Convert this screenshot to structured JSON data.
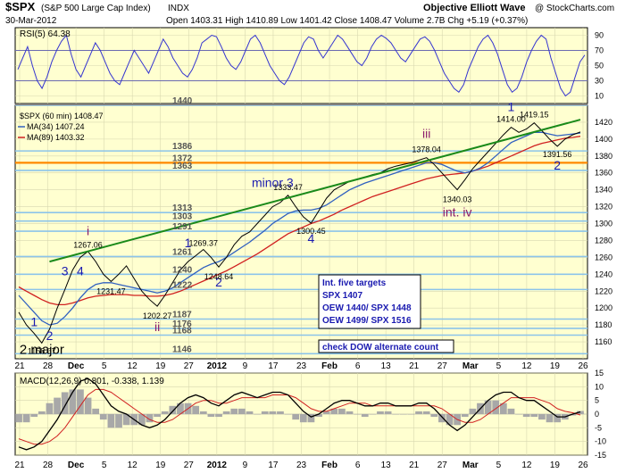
{
  "header": {
    "symbol": "$SPX",
    "name": "(S&P 500 Large Cap Index)",
    "exchange": "INDX",
    "date": "30-Mar-2012",
    "ohlc_line": "Open 1403.31   High 1410.89   Low 1401.42   Close 1408.47   Volume 2.7B   Chg +5.19 (+0.37%)",
    "source_left": "Objective Elliott Wave",
    "source_right": "@ StockCharts.com"
  },
  "rsi": {
    "label": "RSI(5) 64.38",
    "ticks": [
      "90",
      "70",
      "50",
      "30",
      "10"
    ],
    "values": [
      45,
      60,
      75,
      50,
      30,
      20,
      35,
      55,
      70,
      82,
      90,
      65,
      45,
      35,
      50,
      65,
      80,
      70,
      55,
      40,
      30,
      25,
      40,
      55,
      70,
      60,
      50,
      40,
      55,
      70,
      85,
      75,
      60,
      50,
      40,
      35,
      45,
      60,
      80,
      85,
      90,
      88,
      75,
      60,
      50,
      45,
      55,
      70,
      85,
      90,
      80,
      65,
      50,
      40,
      30,
      25,
      35,
      50,
      65,
      80,
      88,
      85,
      70,
      60,
      70,
      80,
      90,
      85,
      75,
      65,
      55,
      50,
      60,
      75,
      85,
      90,
      86,
      80,
      70,
      60,
      55,
      65,
      75,
      85,
      88,
      82,
      70,
      55,
      40,
      30,
      20,
      15,
      25,
      45,
      60,
      75,
      85,
      90,
      80,
      65,
      45,
      25,
      15,
      20,
      35,
      55,
      70,
      82,
      90,
      85,
      60,
      40,
      20,
      10,
      15,
      35,
      55,
      64
    ]
  },
  "main": {
    "legend": [
      "$SPX (60 min) 1408.47",
      "MA(34) 1407.24",
      "MA(89) 1403.32"
    ],
    "ylim": [
      1140,
      1440
    ],
    "yticks": [
      "1420",
      "1400",
      "1380",
      "1360",
      "1340",
      "1320",
      "1300",
      "1280",
      "1260",
      "1240",
      "1220",
      "1200",
      "1180",
      "1160"
    ],
    "levels": [
      1440,
      1386,
      1372,
      1363,
      1313,
      1303,
      1291,
      1261,
      1240,
      1222,
      1187,
      1176,
      1168,
      1146
    ],
    "orange_level": 1372,
    "orange_label": "1372",
    "wave_labels": [
      "1",
      "2",
      "3",
      "4",
      "i",
      "ii",
      "1",
      "2",
      "minor 3",
      "4",
      "iii",
      "int. iv",
      "1",
      "2",
      "2 major"
    ],
    "price_labels": [
      "1267.06",
      "1231.47",
      "1202.27",
      "1158.67",
      "1269.37",
      "1248.64",
      "1333.47",
      "1300.45",
      "1378.04",
      "1340.03",
      "1414.00",
      "1419.15",
      "1391.56"
    ],
    "targets_box": [
      "Int. five targets",
      "SPX 1407",
      "OEW 1440/ SPX 1448",
      "OEW 1499/ SPX 1516"
    ],
    "alt_box": "check DOW alternate count"
  },
  "chart_data": {
    "type": "line",
    "title": "$SPX (S&P 500 Large Cap Index) INDX",
    "xlabel": "",
    "ylabel": "",
    "x_ticks": [
      "21",
      "28",
      "Dec",
      "5",
      "12",
      "19",
      "27",
      "2012",
      "9",
      "17",
      "23",
      "Feb",
      "6",
      "13",
      "21",
      "27",
      "Mar",
      "5",
      "12",
      "19",
      "26"
    ],
    "ylim": [
      1140,
      1440
    ],
    "series": [
      {
        "name": "$SPX (60 min) 1408.47",
        "values": [
          1195,
          1180,
          1170,
          1158.67,
          1175,
          1200,
          1222,
          1245,
          1260,
          1267.06,
          1255,
          1240,
          1231.47,
          1240,
          1250,
          1235,
          1220,
          1210,
          1202.27,
          1215,
          1230,
          1245,
          1255,
          1262,
          1269.37,
          1260,
          1248.64,
          1260,
          1275,
          1285,
          1290,
          1300,
          1310,
          1320,
          1325,
          1333.47,
          1320,
          1308,
          1300.45,
          1315,
          1330,
          1340,
          1345,
          1350,
          1352,
          1355,
          1358,
          1360,
          1365,
          1368,
          1370,
          1372,
          1375,
          1378.04,
          1370,
          1360,
          1350,
          1340.03,
          1352,
          1365,
          1375,
          1385,
          1395,
          1405,
          1414.0,
          1408,
          1412,
          1419.15,
          1410,
          1400,
          1391.56,
          1400,
          1405,
          1408.47
        ]
      },
      {
        "name": "MA(34) 1407.24",
        "values": [
          1215,
          1205,
          1195,
          1185,
          1180,
          1182,
          1190,
          1200,
          1212,
          1222,
          1228,
          1230,
          1230,
          1228,
          1226,
          1224,
          1222,
          1220,
          1218,
          1220,
          1224,
          1230,
          1236,
          1242,
          1248,
          1252,
          1255,
          1260,
          1266,
          1272,
          1278,
          1285,
          1292,
          1300,
          1306,
          1312,
          1315,
          1316,
          1316,
          1318,
          1322,
          1328,
          1334,
          1340,
          1344,
          1348,
          1351,
          1354,
          1357,
          1360,
          1363,
          1366,
          1369,
          1372,
          1372,
          1370,
          1366,
          1362,
          1360,
          1362,
          1366,
          1372,
          1380,
          1388,
          1396,
          1400,
          1404,
          1408,
          1408,
          1406,
          1404,
          1405,
          1406,
          1407.24
        ]
      },
      {
        "name": "MA(89) 1403.32",
        "values": [
          1225,
          1220,
          1215,
          1210,
          1206,
          1204,
          1204,
          1206,
          1209,
          1212,
          1214,
          1215,
          1216,
          1216,
          1216,
          1215,
          1215,
          1214,
          1214,
          1215,
          1217,
          1220,
          1224,
          1228,
          1232,
          1236,
          1240,
          1244,
          1249,
          1254,
          1259,
          1264,
          1270,
          1276,
          1282,
          1288,
          1292,
          1296,
          1300,
          1303,
          1307,
          1311,
          1316,
          1320,
          1324,
          1328,
          1332,
          1335,
          1338,
          1341,
          1344,
          1347,
          1350,
          1353,
          1355,
          1357,
          1358,
          1359,
          1360,
          1362,
          1365,
          1368,
          1372,
          1376,
          1380,
          1384,
          1388,
          1392,
          1395,
          1397,
          1399,
          1401,
          1402,
          1403.32
        ]
      }
    ],
    "trendline": {
      "x0_index": 4,
      "y0": 1255,
      "x1_index": 73,
      "y1": 1423
    },
    "macd": {
      "label": "MACD(12,26,9) 0.801, -0.338, 1.139",
      "ylim": [
        -15,
        15
      ],
      "yticks": [
        "15",
        "10",
        "5",
        "0",
        "-5",
        "-10",
        "-15"
      ],
      "macd": [
        -12,
        -13,
        -12,
        -10,
        -6,
        -2,
        3,
        8,
        12,
        13,
        11,
        7,
        3,
        1,
        0,
        -2,
        -4,
        -5,
        -4,
        -2,
        1,
        4,
        6,
        7,
        6,
        4,
        3,
        5,
        7,
        8,
        7,
        6,
        7,
        8,
        8,
        7,
        4,
        1,
        -1,
        0,
        2,
        4,
        5,
        5,
        4,
        3,
        3,
        4,
        4,
        3,
        3,
        3,
        4,
        4,
        2,
        -1,
        -4,
        -6,
        -4,
        -1,
        2,
        5,
        7,
        8,
        8,
        6,
        5,
        5,
        3,
        1,
        -1,
        -1,
        0,
        0.801
      ],
      "signal": [
        -9,
        -10,
        -11,
        -11,
        -10,
        -8,
        -5,
        -1,
        3,
        7,
        9,
        9,
        8,
        6,
        4,
        2,
        0,
        -2,
        -3,
        -3,
        -2,
        0,
        2,
        4,
        5,
        5,
        4,
        4,
        5,
        6,
        6,
        6,
        6,
        7,
        7,
        7,
        6,
        4,
        2,
        1,
        1,
        2,
        3,
        4,
        4,
        4,
        3,
        3,
        3,
        3,
        3,
        3,
        3,
        3,
        3,
        2,
        0,
        -2,
        -3,
        -3,
        -2,
        0,
        2,
        4,
        6,
        6,
        6,
        6,
        5,
        4,
        2,
        1,
        0.5,
        -0.338
      ],
      "histogram": [
        -3,
        -3,
        -1,
        1,
        4,
        6,
        8,
        9,
        9,
        6,
        2,
        -2,
        -5,
        -5,
        -4,
        -4,
        -4,
        -3,
        -1,
        1,
        3,
        4,
        4,
        3,
        1,
        -1,
        -1,
        1,
        2,
        2,
        1,
        0,
        1,
        1,
        1,
        0,
        -2,
        -3,
        -3,
        -1,
        1,
        2,
        2,
        1,
        0,
        -1,
        0,
        1,
        1,
        0,
        0,
        0,
        1,
        1,
        -1,
        -3,
        -4,
        -4,
        -1,
        2,
        4,
        5,
        5,
        4,
        2,
        0,
        -1,
        -1,
        -2,
        -3,
        -3,
        -2,
        -0.5,
        1.139
      ]
    }
  }
}
